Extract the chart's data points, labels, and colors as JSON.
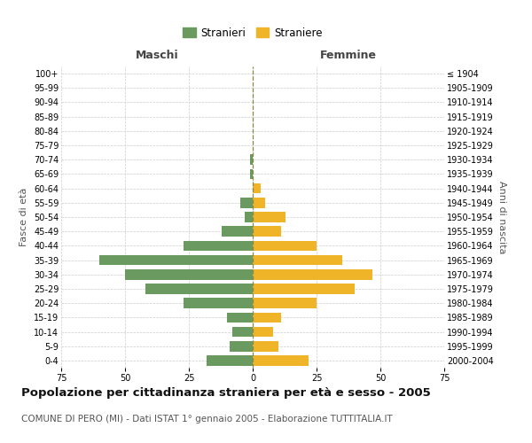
{
  "age_groups": [
    "0-4",
    "5-9",
    "10-14",
    "15-19",
    "20-24",
    "25-29",
    "30-34",
    "35-39",
    "40-44",
    "45-49",
    "50-54",
    "55-59",
    "60-64",
    "65-69",
    "70-74",
    "75-79",
    "80-84",
    "85-89",
    "90-94",
    "95-99",
    "100+"
  ],
  "birth_years": [
    "2000-2004",
    "1995-1999",
    "1990-1994",
    "1985-1989",
    "1980-1984",
    "1975-1979",
    "1970-1974",
    "1965-1969",
    "1960-1964",
    "1955-1959",
    "1950-1954",
    "1945-1949",
    "1940-1944",
    "1935-1939",
    "1930-1934",
    "1925-1929",
    "1920-1924",
    "1915-1919",
    "1910-1914",
    "1905-1909",
    "≤ 1904"
  ],
  "males": [
    18,
    9,
    8,
    10,
    27,
    42,
    50,
    60,
    27,
    12,
    3,
    5,
    0,
    1,
    1,
    0,
    0,
    0,
    0,
    0,
    0
  ],
  "females": [
    22,
    10,
    8,
    11,
    25,
    40,
    47,
    35,
    25,
    11,
    13,
    5,
    3,
    0,
    0,
    0,
    0,
    0,
    0,
    0,
    0
  ],
  "male_color": "#6a9a5f",
  "female_color": "#f0b429",
  "center_line_color": "#888844",
  "background_color": "#ffffff",
  "grid_color": "#cccccc",
  "xlim": 75,
  "title": "Popolazione per cittadinanza straniera per età e sesso - 2005",
  "subtitle": "COMUNE DI PERO (MI) - Dati ISTAT 1° gennaio 2005 - Elaborazione TUTTITALIA.IT",
  "ylabel_left": "Fasce di età",
  "ylabel_right": "Anni di nascita",
  "header_left": "Maschi",
  "header_right": "Femmine",
  "legend_male": "Stranieri",
  "legend_female": "Straniere",
  "title_fontsize": 9.5,
  "subtitle_fontsize": 7.5,
  "tick_fontsize": 7,
  "label_fontsize": 8,
  "header_fontsize": 9
}
